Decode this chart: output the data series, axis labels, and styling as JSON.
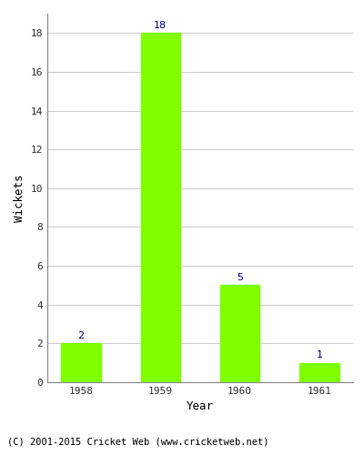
{
  "categories": [
    "1958",
    "1959",
    "1960",
    "1961"
  ],
  "values": [
    2,
    18,
    5,
    1
  ],
  "bar_color": "#7FFF00",
  "bar_edgecolor": "#7FFF00",
  "xlabel": "Year",
  "ylabel": "Wickets",
  "ylim": [
    0,
    19
  ],
  "yticks": [
    0,
    2,
    4,
    6,
    8,
    10,
    12,
    14,
    16,
    18
  ],
  "label_color": "#00008B",
  "label_fontsize": 8,
  "axis_label_fontsize": 9,
  "tick_fontsize": 8,
  "footer_text": "(C) 2001-2015 Cricket Web (www.cricketweb.net)",
  "footer_fontsize": 7.5,
  "background_color": "#ffffff",
  "grid_color": "#cccccc",
  "grid_linewidth": 0.7
}
